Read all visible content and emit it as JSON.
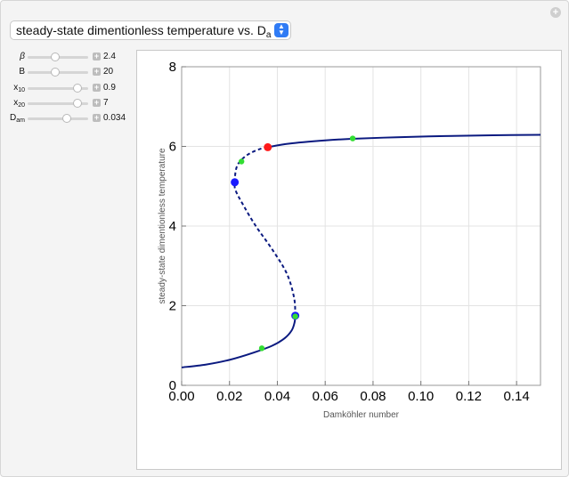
{
  "plot_selector": {
    "label_main": "steady-state dimentionless temperature vs. D",
    "label_sub": "a"
  },
  "controls": [
    {
      "id": "beta",
      "symbol": "β",
      "sub": "",
      "value": "2.4",
      "fraction": 0.45
    },
    {
      "id": "B",
      "symbol": "B",
      "sub": "",
      "value": "20",
      "fraction": 0.45
    },
    {
      "id": "x10",
      "symbol": "x",
      "sub": "10",
      "value": "0.9",
      "fraction": 0.82
    },
    {
      "id": "x20",
      "symbol": "x",
      "sub": "20",
      "value": "7",
      "fraction": 0.82
    },
    {
      "id": "Dam",
      "symbol": "D",
      "sub": "am",
      "value": "0.034",
      "fraction": 0.65
    }
  ],
  "chart_data": {
    "type": "line",
    "xlabel": "Damköhler number",
    "ylabel": "steady-state dimentionless temperature",
    "xlim": [
      0,
      0.15
    ],
    "ylim": [
      0,
      8
    ],
    "x_ticks": [
      "0.00",
      "0.02",
      "0.04",
      "0.06",
      "0.08",
      "0.10",
      "0.12",
      "0.14"
    ],
    "y_ticks": [
      "0",
      "2",
      "4",
      "6",
      "8"
    ],
    "grid": true,
    "series": [
      {
        "style": "solid",
        "color": "#0b1a80",
        "points": [
          [
            0.0,
            0.45
          ],
          [
            0.01,
            0.52
          ],
          [
            0.02,
            0.64
          ],
          [
            0.03,
            0.82
          ],
          [
            0.038,
            1.0
          ],
          [
            0.043,
            1.18
          ],
          [
            0.046,
            1.38
          ],
          [
            0.0472,
            1.58
          ],
          [
            0.0475,
            1.75
          ]
        ]
      },
      {
        "style": "dashed",
        "color": "#0b1a80",
        "points": [
          [
            0.0475,
            1.75
          ],
          [
            0.047,
            2.2
          ],
          [
            0.044,
            2.8
          ],
          [
            0.038,
            3.4
          ],
          [
            0.031,
            4.0
          ],
          [
            0.026,
            4.5
          ],
          [
            0.0225,
            4.9
          ],
          [
            0.0222,
            5.1
          ]
        ]
      },
      {
        "style": "dashed",
        "color": "#0b1a80",
        "points": [
          [
            0.0222,
            5.1
          ],
          [
            0.0225,
            5.35
          ],
          [
            0.0235,
            5.55
          ],
          [
            0.026,
            5.72
          ],
          [
            0.029,
            5.84
          ],
          [
            0.033,
            5.94
          ],
          [
            0.036,
            5.98
          ]
        ]
      },
      {
        "style": "solid",
        "color": "#0b1a80",
        "points": [
          [
            0.036,
            5.98
          ],
          [
            0.045,
            6.07
          ],
          [
            0.06,
            6.15
          ],
          [
            0.071,
            6.19
          ],
          [
            0.09,
            6.23
          ],
          [
            0.11,
            6.26
          ],
          [
            0.13,
            6.28
          ],
          [
            0.15,
            6.29
          ]
        ]
      }
    ],
    "markers": [
      {
        "x": 0.0222,
        "y": 5.1,
        "color": "#1a1aff",
        "size": 4.5
      },
      {
        "x": 0.0475,
        "y": 1.75,
        "color": "#1a1aff",
        "size": 4.5
      },
      {
        "x": 0.036,
        "y": 5.98,
        "color": "#ff1a1a",
        "size": 4.5
      },
      {
        "x": 0.0335,
        "y": 0.93,
        "color": "#33dd33",
        "size": 3.2
      },
      {
        "x": 0.0475,
        "y": 1.73,
        "color": "#33dd33",
        "size": 3.2
      },
      {
        "x": 0.025,
        "y": 5.62,
        "color": "#33dd33",
        "size": 3.2
      },
      {
        "x": 0.0715,
        "y": 6.2,
        "color": "#33dd33",
        "size": 3.2
      }
    ]
  }
}
